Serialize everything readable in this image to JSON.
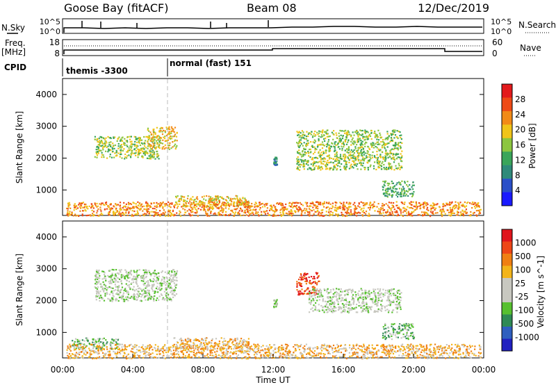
{
  "header": {
    "station": "Goose Bay (fitACF)",
    "beam": "Beam 08",
    "date": "12/Dec/2019"
  },
  "info_panels": {
    "noise": {
      "left_label": "N.Sky",
      "right_label": "N.Search",
      "left_ticks": [
        "10^5",
        "10^0"
      ],
      "right_ticks": [
        "10^5",
        "10^0"
      ]
    },
    "freq": {
      "left_label_1": "Freq.",
      "left_label_2": "[MHz]",
      "right_label": "Nave",
      "left_ticks": [
        "18",
        "8"
      ],
      "right_ticks": [
        "60",
        "0"
      ]
    },
    "cpid": {
      "label": "CPID",
      "segments": [
        {
          "text": "themis -3300",
          "start_hour": 0
        },
        {
          "text": "normal (fast) 151",
          "start_hour": 6
        }
      ]
    }
  },
  "colors": {
    "background": "#ffffff",
    "axis": "#000000",
    "power_scale": [
      "#1a1aff",
      "#2a4fc8",
      "#2f8a7a",
      "#3aa55a",
      "#8cc63f",
      "#f0c419",
      "#f28a17",
      "#ee4a16",
      "#e31a1c"
    ],
    "velocity_scale": [
      "#2020c0",
      "#2f5fbf",
      "#2f8a55",
      "#57c02f",
      "#c8c8c0",
      "#c8c8c0",
      "#f3b41a",
      "#f07f12",
      "#ee4616",
      "#e0141c"
    ]
  },
  "chart_data": [
    {
      "type": "heatmap",
      "name": "power",
      "ylabel": "Slant Range [km]",
      "colorbar_label": "Power [dB]",
      "colorbar_ticks": [
        "28",
        "24",
        "20",
        "16",
        "12",
        "8",
        "4"
      ],
      "ylim": [
        200,
        4500
      ],
      "xlim_hours": [
        0,
        24
      ],
      "y_ticks": [
        "4000",
        "3000",
        "2000",
        "1000"
      ],
      "y_tick_values": [
        4000,
        3000,
        2000,
        1000
      ],
      "regions": [
        {
          "t0": 1.8,
          "t1": 5.5,
          "r0": 2000,
          "r1": 2700,
          "level": 4
        },
        {
          "t0": 4.8,
          "t1": 6.5,
          "r0": 2300,
          "r1": 3000,
          "level": 5
        },
        {
          "t0": 12.0,
          "t1": 12.2,
          "r0": 1800,
          "r1": 2050,
          "level": 2
        },
        {
          "t0": 13.3,
          "t1": 19.3,
          "r0": 1650,
          "r1": 2900,
          "level": 4
        },
        {
          "t0": 18.2,
          "t1": 20.0,
          "r0": 800,
          "r1": 1300,
          "level": 3
        },
        {
          "t0": 6.3,
          "t1": 10.6,
          "r0": 500,
          "r1": 850,
          "level": 5
        },
        {
          "t0": 0.2,
          "t1": 23.8,
          "r0": 200,
          "r1": 650,
          "level": 6
        }
      ]
    },
    {
      "type": "heatmap",
      "name": "velocity",
      "ylabel": "Slant Range [km]",
      "xlabel": "Time UT",
      "colorbar_label": "Velocity [m s^-1]",
      "colorbar_ticks": [
        "1000",
        "500",
        "100",
        "25",
        "-25",
        "-100",
        "-500",
        "-1000"
      ],
      "ylim": [
        200,
        4500
      ],
      "xlim_hours": [
        0,
        24
      ],
      "y_ticks": [
        "4000",
        "3000",
        "2000",
        "1000"
      ],
      "y_tick_values": [
        4000,
        3000,
        2000,
        1000
      ],
      "x_ticks": [
        "00:00",
        "04:00",
        "08:00",
        "12:00",
        "16:00",
        "20:00",
        "00:00"
      ],
      "x_tick_hours": [
        0,
        4,
        8,
        12,
        16,
        20,
        24
      ],
      "regions": [
        {
          "t0": 1.8,
          "t1": 6.5,
          "r0": 2000,
          "r1": 3000,
          "level": 4
        },
        {
          "t0": 12.0,
          "t1": 12.2,
          "r0": 1800,
          "r1": 2050,
          "level": 4
        },
        {
          "t0": 13.3,
          "t1": 14.6,
          "r0": 2200,
          "r1": 2900,
          "level": 8
        },
        {
          "t0": 14.0,
          "t1": 19.3,
          "r0": 1650,
          "r1": 2400,
          "level": 4
        },
        {
          "t0": 18.2,
          "t1": 20.0,
          "r0": 800,
          "r1": 1300,
          "level": 3
        },
        {
          "t0": 6.3,
          "t1": 10.6,
          "r0": 500,
          "r1": 850,
          "level": 6
        },
        {
          "t0": 0.5,
          "t1": 3.2,
          "r0": 500,
          "r1": 850,
          "level": 3
        },
        {
          "t0": 0.2,
          "t1": 23.8,
          "r0": 200,
          "r1": 650,
          "level": 6
        }
      ]
    }
  ]
}
